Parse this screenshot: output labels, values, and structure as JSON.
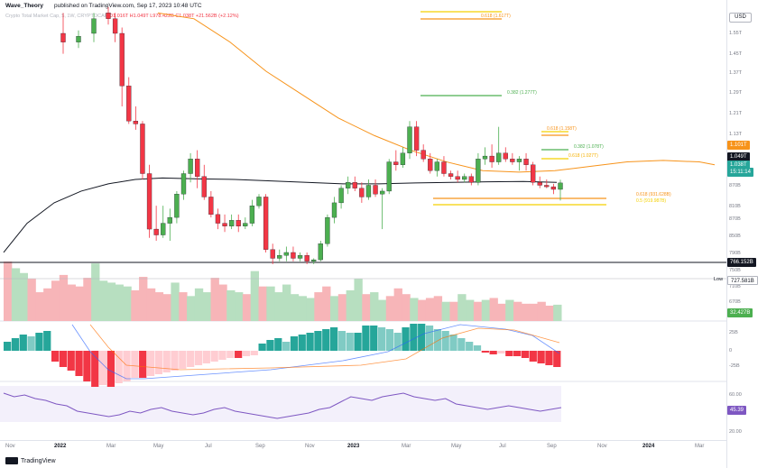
{
  "header": {
    "author": "Wave_Theory",
    "published": "published on TradingView.com, Sep 17, 2023 10:48 UTC",
    "symbol": "Crypto Total Market Cap, $, 1W, CRYPTOCAP",
    "ohlc": "O1.016T H1.049T L978.422B C1.038T +21.562B (+2.12%)"
  },
  "price_scale": {
    "currency": "USD",
    "ticks": [
      "1.55T",
      "1.45T",
      "1.37T",
      "1.29T",
      "1.21T",
      "1.13T",
      "870B",
      "810B",
      "870B",
      "850B",
      "790B",
      "750B",
      "710B",
      "670B"
    ],
    "badges": {
      "ema_value": "1.101T",
      "high_value": "1.049T",
      "close_value": "1.038T",
      "countdown": "15:11:14",
      "support_value": "766.152B",
      "low_label": "Low",
      "low_value": "727.581B",
      "volume_value": "32.427B"
    },
    "macd_ticks": [
      "25B",
      "0",
      "-25B"
    ],
    "rsi_ticks": [
      "60.00",
      "20.00"
    ],
    "rsi_value": "45.39"
  },
  "fib_labels": {
    "top": "0.618 (1.617T)",
    "mid_green": "0.382 (1.277T)",
    "orange_a": "0.618 (1.158T)",
    "orange_b": "0.382 (1.078T)",
    "orange_c": "0.618 (1.027T)",
    "support_a": "0.618 (931.628B)",
    "support_b": "0.5 (919.987B)"
  },
  "time_axis": {
    "labels": [
      "Nov",
      "2022",
      "Mar",
      "May",
      "Jul",
      "Sep",
      "Nov",
      "2023",
      "Mar",
      "May",
      "Jul",
      "Sep",
      "Nov",
      "2024",
      "Mar"
    ]
  },
  "footer": {
    "brand": "TradingView"
  },
  "colors": {
    "up": "#26a69a",
    "up_alt": "#4caf50",
    "down": "#f23645",
    "ema50": "#f7931a",
    "ema200": "#131722",
    "fib_gold": "#f5d000",
    "fib_green": "#4caf50",
    "rsi": "#7e57c2"
  },
  "chart_data": {
    "type": "candlestick",
    "interval": "1W",
    "candles": [
      {
        "x": "2021-11-08",
        "o": 1.55,
        "h": 1.62,
        "l": 1.48,
        "c": 1.52
      },
      {
        "x": "2021-11-15",
        "o": 1.52,
        "h": 1.56,
        "l": 1.5,
        "c": 1.54
      },
      {
        "x": "2021-12-06",
        "o": 1.55,
        "h": 1.62,
        "l": 1.52,
        "c": 1.6
      },
      {
        "x": "2022-03-28",
        "o": 1.62,
        "h": 1.64,
        "l": 1.58,
        "c": 1.6
      },
      {
        "x": "2022-05-02",
        "o": 1.6,
        "h": 1.62,
        "l": 1.52,
        "c": 1.55
      },
      {
        "x": "2022-05-09",
        "o": 1.55,
        "h": 1.57,
        "l": 1.3,
        "c": 1.37
      },
      {
        "x": "2022-05-16",
        "o": 1.37,
        "h": 1.4,
        "l": 1.24,
        "c": 1.25
      },
      {
        "x": "2022-05-23",
        "o": 1.25,
        "h": 1.3,
        "l": 1.22,
        "c": 1.24
      },
      {
        "x": "2022-06-06",
        "o": 1.24,
        "h": 1.25,
        "l": 1.05,
        "c": 1.07
      },
      {
        "x": "2022-06-13",
        "o": 1.07,
        "h": 1.1,
        "l": 0.85,
        "c": 0.88
      },
      {
        "x": "2022-06-20",
        "o": 0.88,
        "h": 0.96,
        "l": 0.84,
        "c": 0.86
      },
      {
        "x": "2022-06-27",
        "o": 0.86,
        "h": 0.96,
        "l": 0.85,
        "c": 0.9
      },
      {
        "x": "2022-07-04",
        "o": 0.9,
        "h": 0.95,
        "l": 0.84,
        "c": 0.92
      },
      {
        "x": "2022-07-11",
        "o": 0.92,
        "h": 1.01,
        "l": 0.9,
        "c": 1.0
      },
      {
        "x": "2022-07-18",
        "o": 1.0,
        "h": 1.08,
        "l": 0.98,
        "c": 1.07
      },
      {
        "x": "2022-07-25",
        "o": 1.07,
        "h": 1.14,
        "l": 1.04,
        "c": 1.12
      },
      {
        "x": "2022-08-01",
        "o": 1.12,
        "h": 1.15,
        "l": 1.02,
        "c": 1.06
      },
      {
        "x": "2022-08-08",
        "o": 1.06,
        "h": 1.1,
        "l": 0.98,
        "c": 0.99
      },
      {
        "x": "2022-08-15",
        "o": 0.99,
        "h": 1.01,
        "l": 0.92,
        "c": 0.93
      },
      {
        "x": "2022-08-22",
        "o": 0.93,
        "h": 0.95,
        "l": 0.88,
        "c": 0.9
      },
      {
        "x": "2022-08-29",
        "o": 0.9,
        "h": 0.93,
        "l": 0.87,
        "c": 0.89
      },
      {
        "x": "2022-09-05",
        "o": 0.89,
        "h": 0.93,
        "l": 0.88,
        "c": 0.91
      },
      {
        "x": "2022-09-12",
        "o": 0.91,
        "h": 0.93,
        "l": 0.87,
        "c": 0.89
      },
      {
        "x": "2022-09-19",
        "o": 0.89,
        "h": 0.92,
        "l": 0.88,
        "c": 0.9
      },
      {
        "x": "2022-09-26",
        "o": 0.9,
        "h": 0.98,
        "l": 0.89,
        "c": 0.96
      },
      {
        "x": "2022-10-03",
        "o": 0.96,
        "h": 1.0,
        "l": 0.95,
        "c": 0.99
      },
      {
        "x": "2022-10-10",
        "o": 0.99,
        "h": 1.0,
        "l": 0.8,
        "c": 0.81
      },
      {
        "x": "2022-10-17",
        "o": 0.81,
        "h": 0.83,
        "l": 0.76,
        "c": 0.78
      },
      {
        "x": "2022-10-24",
        "o": 0.78,
        "h": 0.81,
        "l": 0.77,
        "c": 0.79
      },
      {
        "x": "2022-10-31",
        "o": 0.79,
        "h": 0.82,
        "l": 0.77,
        "c": 0.8
      },
      {
        "x": "2022-11-07",
        "o": 0.8,
        "h": 0.82,
        "l": 0.77,
        "c": 0.78
      },
      {
        "x": "2022-11-14",
        "o": 0.78,
        "h": 0.8,
        "l": 0.77,
        "c": 0.79
      },
      {
        "x": "2022-11-21",
        "o": 0.79,
        "h": 0.8,
        "l": 0.76,
        "c": 0.77
      },
      {
        "x": "2022-11-28",
        "o": 0.77,
        "h": 0.78,
        "l": 0.76,
        "c": 0.775
      },
      {
        "x": "2022-12-05",
        "o": 0.775,
        "h": 0.84,
        "l": 0.77,
        "c": 0.83
      },
      {
        "x": "2022-12-12",
        "o": 0.83,
        "h": 0.93,
        "l": 0.82,
        "c": 0.92
      },
      {
        "x": "2022-12-19",
        "o": 0.92,
        "h": 0.99,
        "l": 0.9,
        "c": 0.97
      },
      {
        "x": "2022-12-26",
        "o": 0.97,
        "h": 1.03,
        "l": 0.95,
        "c": 1.02
      },
      {
        "x": "2023-01-02",
        "o": 1.02,
        "h": 1.06,
        "l": 1.0,
        "c": 1.04
      },
      {
        "x": "2023-01-09",
        "o": 1.04,
        "h": 1.06,
        "l": 1.01,
        "c": 1.02
      },
      {
        "x": "2023-01-16",
        "o": 1.02,
        "h": 1.04,
        "l": 0.97,
        "c": 0.99
      },
      {
        "x": "2023-01-23",
        "o": 0.99,
        "h": 1.05,
        "l": 0.98,
        "c": 1.03
      },
      {
        "x": "2023-01-30",
        "o": 1.03,
        "h": 1.05,
        "l": 0.99,
        "c": 1.0
      },
      {
        "x": "2023-02-06",
        "o": 1.0,
        "h": 1.02,
        "l": 0.88,
        "c": 1.01
      },
      {
        "x": "2023-02-13",
        "o": 1.01,
        "h": 1.12,
        "l": 1.0,
        "c": 1.11
      },
      {
        "x": "2023-02-20",
        "o": 1.11,
        "h": 1.15,
        "l": 1.08,
        "c": 1.1
      },
      {
        "x": "2023-02-27",
        "o": 1.1,
        "h": 1.16,
        "l": 1.09,
        "c": 1.14
      },
      {
        "x": "2023-03-06",
        "o": 1.14,
        "h": 1.25,
        "l": 1.12,
        "c": 1.23
      },
      {
        "x": "2023-03-13",
        "o": 1.23,
        "h": 1.25,
        "l": 1.13,
        "c": 1.15
      },
      {
        "x": "2023-03-20",
        "o": 1.15,
        "h": 1.17,
        "l": 1.11,
        "c": 1.12
      },
      {
        "x": "2023-03-27",
        "o": 1.12,
        "h": 1.14,
        "l": 1.07,
        "c": 1.08
      },
      {
        "x": "2023-04-03",
        "o": 1.08,
        "h": 1.12,
        "l": 1.06,
        "c": 1.11
      },
      {
        "x": "2023-04-10",
        "o": 1.11,
        "h": 1.13,
        "l": 1.06,
        "c": 1.07
      },
      {
        "x": "2023-04-17",
        "o": 1.07,
        "h": 1.08,
        "l": 1.05,
        "c": 1.06
      },
      {
        "x": "2023-04-24",
        "o": 1.06,
        "h": 1.08,
        "l": 1.04,
        "c": 1.05
      },
      {
        "x": "2023-05-01",
        "o": 1.05,
        "h": 1.07,
        "l": 1.04,
        "c": 1.06
      },
      {
        "x": "2023-05-08",
        "o": 1.06,
        "h": 1.07,
        "l": 1.03,
        "c": 1.04
      },
      {
        "x": "2023-05-15",
        "o": 1.04,
        "h": 1.14,
        "l": 1.03,
        "c": 1.12
      },
      {
        "x": "2023-05-22",
        "o": 1.12,
        "h": 1.16,
        "l": 1.1,
        "c": 1.13
      },
      {
        "x": "2023-05-29",
        "o": 1.13,
        "h": 1.17,
        "l": 1.09,
        "c": 1.11
      },
      {
        "x": "2023-06-05",
        "o": 1.11,
        "h": 1.23,
        "l": 1.1,
        "c": 1.14
      },
      {
        "x": "2023-06-12",
        "o": 1.14,
        "h": 1.16,
        "l": 1.11,
        "c": 1.12
      },
      {
        "x": "2023-06-19",
        "o": 1.12,
        "h": 1.14,
        "l": 1.1,
        "c": 1.11
      },
      {
        "x": "2023-06-26",
        "o": 1.11,
        "h": 1.13,
        "l": 1.08,
        "c": 1.12
      },
      {
        "x": "2023-07-03",
        "o": 1.12,
        "h": 1.14,
        "l": 1.08,
        "c": 1.1
      },
      {
        "x": "2023-07-10",
        "o": 1.1,
        "h": 1.11,
        "l": 1.03,
        "c": 1.04
      },
      {
        "x": "2023-07-17",
        "o": 1.04,
        "h": 1.06,
        "l": 1.02,
        "c": 1.03
      },
      {
        "x": "2023-07-24",
        "o": 1.03,
        "h": 1.05,
        "l": 1.02,
        "c": 1.025
      },
      {
        "x": "2023-07-31",
        "o": 1.025,
        "h": 1.035,
        "l": 1.0,
        "c": 1.016
      },
      {
        "x": "2023-08-07",
        "o": 1.016,
        "h": 1.049,
        "l": 0.978,
        "c": 1.038
      }
    ],
    "ema50": [
      [
        0,
        1.62
      ],
      [
        40,
        1.6
      ],
      [
        80,
        1.52
      ],
      [
        120,
        1.42
      ],
      [
        160,
        1.34
      ],
      [
        200,
        1.26
      ],
      [
        240,
        1.2
      ],
      [
        280,
        1.15
      ],
      [
        320,
        1.11
      ],
      [
        360,
        1.08
      ],
      [
        400,
        1.075
      ],
      [
        440,
        1.08
      ],
      [
        480,
        1.095
      ],
      [
        520,
        1.11
      ],
      [
        560,
        1.115
      ],
      [
        600,
        1.11
      ],
      [
        617,
        1.1
      ]
    ],
    "ema200": [
      [
        4,
        0.8
      ],
      [
        30,
        0.9
      ],
      [
        60,
        0.97
      ],
      [
        90,
        1.01
      ],
      [
        120,
        1.035
      ],
      [
        150,
        1.05
      ],
      [
        180,
        1.055
      ],
      [
        220,
        1.052
      ],
      [
        260,
        1.05
      ],
      [
        300,
        1.045
      ],
      [
        340,
        1.04
      ],
      [
        380,
        1.035
      ],
      [
        420,
        1.035
      ],
      [
        460,
        1.038
      ],
      [
        500,
        1.04
      ],
      [
        540,
        1.042
      ],
      [
        580,
        1.043
      ],
      [
        617,
        1.04
      ]
    ],
    "fib_levels": [
      1.617,
      1.277,
      1.158,
      1.078,
      1.027,
      0.93163,
      0.91999
    ],
    "support_level": 0.766152,
    "volume": [
      62,
      55,
      50,
      44,
      30,
      34,
      42,
      48,
      38,
      36,
      45,
      60,
      42,
      40,
      38,
      36,
      32,
      46,
      34,
      30,
      28,
      40,
      30,
      26,
      34,
      30,
      45,
      38,
      32,
      30,
      28,
      52,
      36,
      36,
      30,
      38,
      28,
      26,
      24,
      30,
      36,
      26,
      28,
      32,
      44,
      28,
      30,
      22,
      26,
      34,
      28,
      24,
      22,
      24,
      26,
      20,
      20,
      28,
      22,
      20,
      22,
      24,
      18,
      22,
      20,
      18,
      18,
      20,
      16,
      17
    ],
    "macd_hist": [
      10,
      14,
      18,
      16,
      20,
      22,
      -12,
      -18,
      -22,
      -28,
      -34,
      -40,
      -38,
      -40,
      -36,
      -34,
      -30,
      -30,
      -28,
      -26,
      -24,
      -22,
      -20,
      -18,
      -16,
      -14,
      -12,
      -10,
      -8,
      -8,
      -6,
      -5,
      8,
      12,
      14,
      10,
      16,
      18,
      20,
      22,
      24,
      26,
      22,
      20,
      20,
      28,
      28,
      26,
      24,
      20,
      26,
      30,
      30,
      28,
      24,
      22,
      18,
      14,
      10,
      6,
      -2,
      -4,
      -3,
      -6,
      -6,
      -8,
      -12,
      -14,
      -16,
      -18
    ],
    "rsi": [
      62,
      58,
      60,
      56,
      54,
      50,
      48,
      42,
      40,
      38,
      36,
      38,
      42,
      40,
      44,
      46,
      42,
      40,
      38,
      40,
      44,
      46,
      42,
      40,
      38,
      36,
      34,
      36,
      38,
      40,
      44,
      46,
      52,
      58,
      56,
      54,
      58,
      60,
      62,
      58,
      56,
      54,
      56,
      50,
      48,
      46,
      44,
      46,
      48,
      46,
      44,
      42,
      44,
      46
    ],
    "price_ticks": [
      "1.55T",
      "1.45T",
      "1.37T",
      "1.29T",
      "1.21T",
      "1.13T"
    ]
  }
}
